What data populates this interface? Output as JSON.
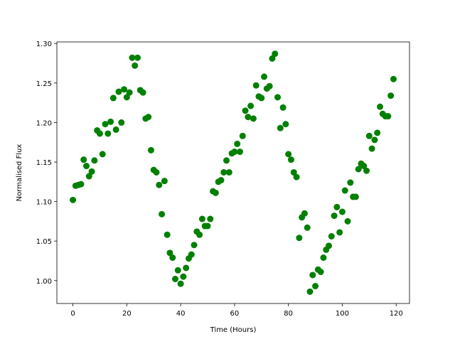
{
  "chart_data": {
    "type": "scatter",
    "title": "",
    "xlabel": "Time (Hours)",
    "ylabel": "Normalised Flux",
    "xlim": [
      -5.95,
      124.95
    ],
    "ylim": [
      0.971,
      1.302
    ],
    "xticks": [
      0,
      20,
      40,
      60,
      80,
      100,
      120
    ],
    "yticks": [
      1.0,
      1.05,
      1.1,
      1.15,
      1.2,
      1.25,
      1.3
    ],
    "xtick_labels": [
      "0",
      "20",
      "40",
      "60",
      "80",
      "100",
      "120"
    ],
    "ytick_labels": [
      "1.00",
      "1.05",
      "1.10",
      "1.15",
      "1.20",
      "1.25",
      "1.30"
    ],
    "grid": false,
    "marker_color": "#008000",
    "series": [
      {
        "x": [
          0,
          1,
          2,
          3,
          4,
          5,
          6,
          7,
          8,
          9,
          10,
          11,
          12,
          13,
          14,
          15,
          16,
          17,
          18,
          19,
          20,
          21,
          22,
          23,
          24,
          25,
          26,
          27,
          28,
          29,
          30,
          31,
          32,
          33,
          34,
          35,
          36,
          37,
          38,
          39,
          40,
          41,
          42,
          43,
          44,
          45,
          46,
          47,
          48,
          49,
          50,
          51,
          52,
          53,
          54,
          55,
          56,
          57,
          58,
          59,
          60,
          61,
          62,
          63,
          64,
          65,
          66,
          67,
          68,
          69,
          70,
          71,
          72,
          73,
          74,
          75,
          76,
          77,
          78,
          79,
          80,
          81,
          82,
          83,
          84,
          85,
          86,
          87,
          88,
          89,
          90,
          91,
          92,
          93,
          94,
          95,
          96,
          97,
          98,
          99,
          100,
          101,
          102,
          103,
          104,
          105,
          106,
          107,
          108,
          109,
          110,
          111,
          112,
          113,
          114,
          115,
          116,
          117,
          118,
          119
        ],
        "y": [
          1.102,
          1.12,
          1.121,
          1.122,
          1.153,
          1.145,
          1.132,
          1.138,
          1.152,
          1.19,
          1.186,
          1.16,
          1.198,
          1.186,
          1.201,
          1.231,
          1.191,
          1.239,
          1.2,
          1.242,
          1.232,
          1.238,
          1.282,
          1.272,
          1.282,
          1.241,
          1.238,
          1.205,
          1.207,
          1.165,
          1.14,
          1.137,
          1.121,
          1.084,
          1.126,
          1.058,
          1.035,
          1.029,
          1.002,
          1.013,
          0.996,
          1.005,
          1.016,
          1.028,
          1.033,
          1.045,
          1.062,
          1.058,
          1.078,
          1.069,
          1.069,
          1.078,
          1.113,
          1.111,
          1.125,
          1.127,
          1.137,
          1.152,
          1.137,
          1.161,
          1.163,
          1.173,
          1.163,
          1.183,
          1.215,
          1.207,
          1.221,
          1.205,
          1.247,
          1.233,
          1.231,
          1.258,
          1.243,
          1.246,
          1.281,
          1.287,
          1.232,
          1.193,
          1.219,
          1.198,
          1.16,
          1.153,
          1.137,
          1.131,
          1.054,
          1.08,
          1.085,
          1.067,
          0.986,
          1.007,
          0.993,
          1.014,
          1.011,
          1.029,
          1.039,
          1.044,
          1.056,
          1.082,
          1.093,
          1.061,
          1.087,
          1.114,
          1.075,
          1.124,
          1.106,
          1.106,
          1.141,
          1.148,
          1.145,
          1.139,
          1.183,
          1.167,
          1.178,
          1.187,
          1.22,
          1.211,
          1.208,
          1.208,
          1.234,
          1.255
        ]
      }
    ]
  }
}
